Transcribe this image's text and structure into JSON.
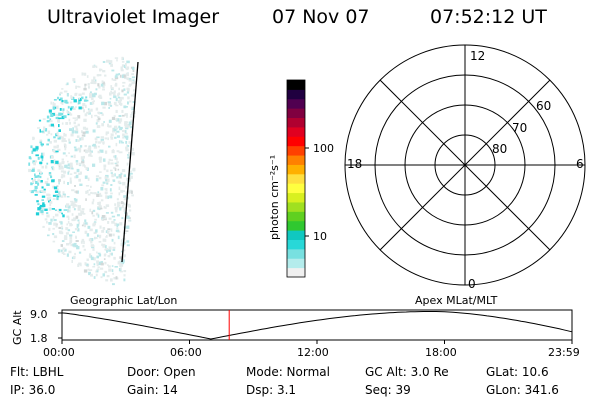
{
  "header": {
    "instrument": "Ultraviolet Imager",
    "date": "07 Nov 07",
    "time": "07:52:12 UT"
  },
  "colorbar": {
    "unit_label": "photon cm⁻²s⁻¹",
    "tick_labels": [
      "100",
      "10"
    ],
    "colors": [
      "#f0f0f0",
      "#b4ecec",
      "#78e0e0",
      "#28d8d8",
      "#10c8c0",
      "#30c830",
      "#60d020",
      "#a0e020",
      "#d8f020",
      "#ffff40",
      "#ffe040",
      "#ffb000",
      "#ff8000",
      "#ff4000",
      "#ff0000",
      "#e00020",
      "#b00030",
      "#800040",
      "#500050",
      "#200040",
      "#000000"
    ]
  },
  "polar_plot": {
    "mlt_labels": {
      "top": "12",
      "bottom": "0",
      "left": "18",
      "right": "6"
    },
    "lat_labels": [
      "60",
      "70",
      "80"
    ]
  },
  "orbit_panel": {
    "ylabel": "GC Alt",
    "y_ticks": [
      "9.0",
      "1.8"
    ],
    "left_title": "Geographic Lat/Lon",
    "right_title": "Apex MLat/MLT",
    "x_ticks": [
      "00:00",
      "06:00",
      "12:00",
      "18:00",
      "23:59"
    ],
    "marker_color": "#ff0000",
    "current_time_hours": 7.87
  },
  "info": {
    "flt": "Flt: LBHL",
    "door": "Door: Open",
    "mode": "Mode:  Normal",
    "gcalt": "GC Alt: 3.0 Re",
    "glat": "GLat:   10.6",
    "ip": "IP: 36.0",
    "gain": "Gain: 14",
    "dsp": "Dsp:     3.1",
    "seq": "Seq: 39",
    "glon": "GLon: 341.6"
  }
}
